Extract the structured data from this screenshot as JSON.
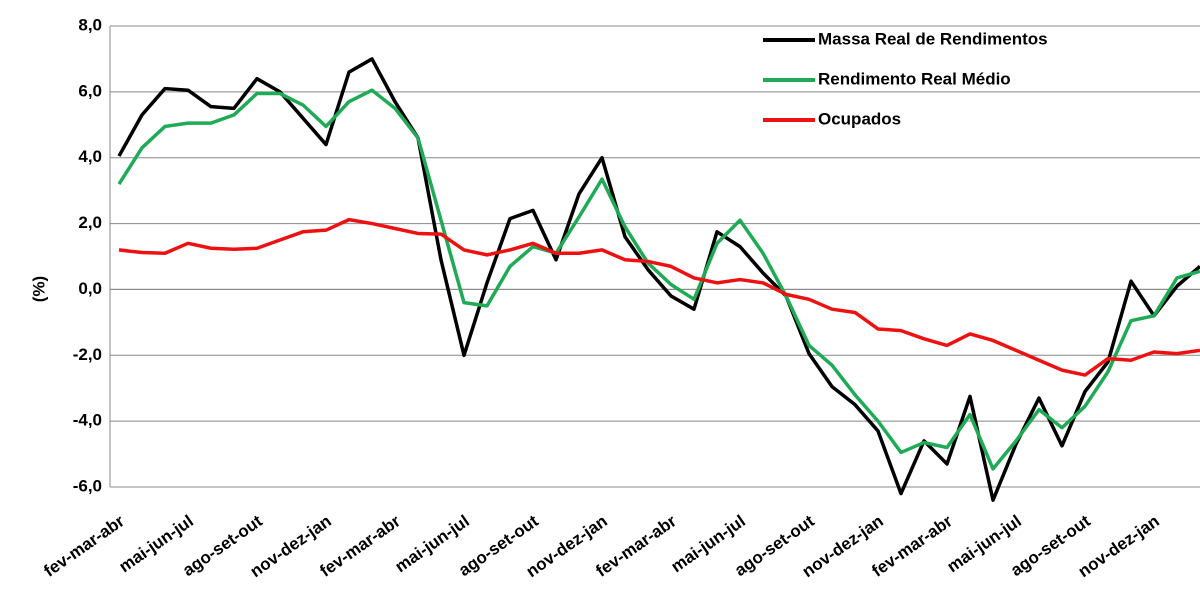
{
  "chart_data": {
    "type": "line",
    "y_label": "(%)",
    "categories": [
      "fev-mar-abr",
      null,
      null,
      "mai-jun-jul",
      null,
      null,
      "ago-set-out",
      null,
      null,
      "nov-dez-jan",
      null,
      null,
      "fev-mar-abr",
      null,
      null,
      "mai-jun-jul",
      null,
      null,
      "ago-set-out",
      null,
      null,
      "nov-dez-jan",
      null,
      null,
      "fev-mar-abr",
      null,
      null,
      "mai-jun-jul",
      null,
      null,
      "ago-set-out",
      null,
      null,
      "nov-dez-jan",
      null,
      null,
      "fev-mar-abr",
      null,
      null,
      "mai-jun-jul",
      null,
      null,
      "ago-set-out",
      null,
      null,
      "nov-dez-jan",
      null,
      null
    ],
    "series": [
      {
        "name": "Massa Real de Rendimentos",
        "color": "#000000",
        "values": [
          4.05,
          5.3,
          6.1,
          6.05,
          5.55,
          5.5,
          6.4,
          6.0,
          5.2,
          4.4,
          6.6,
          7.0,
          5.7,
          4.6,
          0.9,
          -2.0,
          0.2,
          2.15,
          2.4,
          0.9,
          2.9,
          4.0,
          1.6,
          0.6,
          -0.2,
          -0.6,
          1.75,
          1.3,
          0.5,
          -0.2,
          -1.95,
          -2.95,
          -3.5,
          -4.3,
          -6.2,
          -4.6,
          -5.3,
          -3.25,
          -6.4,
          -4.7,
          -3.3,
          -4.75,
          -3.1,
          -2.2,
          0.25,
          -0.8,
          0.1,
          0.7
        ]
      },
      {
        "name": "Rendimento Real Médio",
        "color": "#1faa55",
        "values": [
          3.2,
          4.3,
          4.95,
          5.05,
          5.05,
          5.3,
          5.95,
          5.95,
          5.6,
          4.95,
          5.7,
          6.05,
          5.5,
          4.6,
          2.1,
          -0.4,
          -0.5,
          0.7,
          1.3,
          1.1,
          2.2,
          3.35,
          1.9,
          0.8,
          0.15,
          -0.3,
          1.4,
          2.1,
          1.1,
          -0.2,
          -1.7,
          -2.3,
          -3.2,
          -4.0,
          -4.95,
          -4.65,
          -4.8,
          -3.8,
          -5.45,
          -4.6,
          -3.65,
          -4.2,
          -3.55,
          -2.5,
          -0.95,
          -0.8,
          0.35,
          0.55
        ]
      },
      {
        "name": "Ocupados",
        "color": "#ee1111",
        "values": [
          1.2,
          1.12,
          1.1,
          1.4,
          1.25,
          1.22,
          1.25,
          1.5,
          1.75,
          1.8,
          2.12,
          2.0,
          1.85,
          1.7,
          1.68,
          1.2,
          1.05,
          1.2,
          1.4,
          1.1,
          1.1,
          1.2,
          0.9,
          0.85,
          0.7,
          0.35,
          0.2,
          0.3,
          0.2,
          -0.15,
          -0.3,
          -0.6,
          -0.7,
          -1.2,
          -1.25,
          -1.5,
          -1.7,
          -1.35,
          -1.55,
          -1.85,
          -2.15,
          -2.45,
          -2.6,
          -2.1,
          -2.15,
          -1.9,
          -1.95,
          -1.85
        ]
      }
    ],
    "ylim": [
      -6,
      8
    ],
    "yticks": [
      {
        "value": -6,
        "label": "-6,0"
      },
      {
        "value": -4,
        "label": "-4,0"
      },
      {
        "value": -2,
        "label": "-2,0"
      },
      {
        "value": 0,
        "label": "0,0"
      },
      {
        "value": 2,
        "label": "2,0"
      },
      {
        "value": 4,
        "label": "4,0"
      },
      {
        "value": 6,
        "label": "6,0"
      },
      {
        "value": 8,
        "label": "8,0"
      }
    ],
    "grid": true,
    "legend": "upper right"
  }
}
